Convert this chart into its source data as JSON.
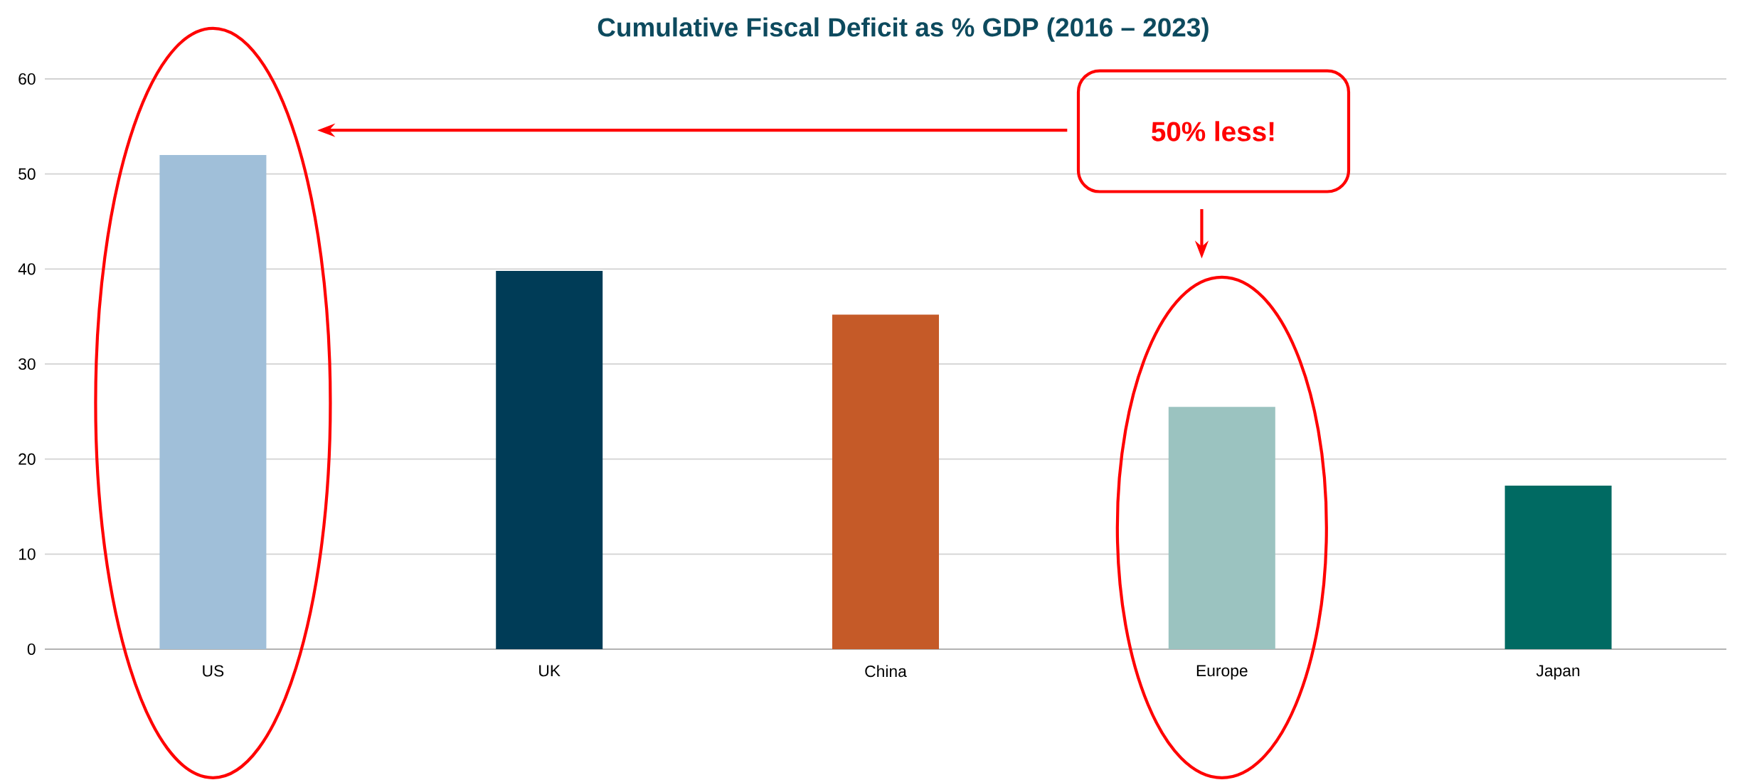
{
  "chart_data": {
    "type": "bar",
    "title": "Cumulative Fiscal Deficit as % GDP (2016 – 2023)",
    "categories": [
      "US",
      "UK",
      "China",
      "Europe",
      "Japan"
    ],
    "values": [
      52.0,
      39.8,
      35.2,
      25.5,
      17.2
    ],
    "colors": [
      "#a0bfd9",
      "#003c57",
      "#c55a28",
      "#9bc3c0",
      "#006a62"
    ],
    "ylim": [
      0,
      60
    ],
    "yticks": [
      0,
      10,
      20,
      30,
      40,
      50,
      60
    ],
    "grid": "y",
    "annotations": [
      "50% less!"
    ]
  }
}
